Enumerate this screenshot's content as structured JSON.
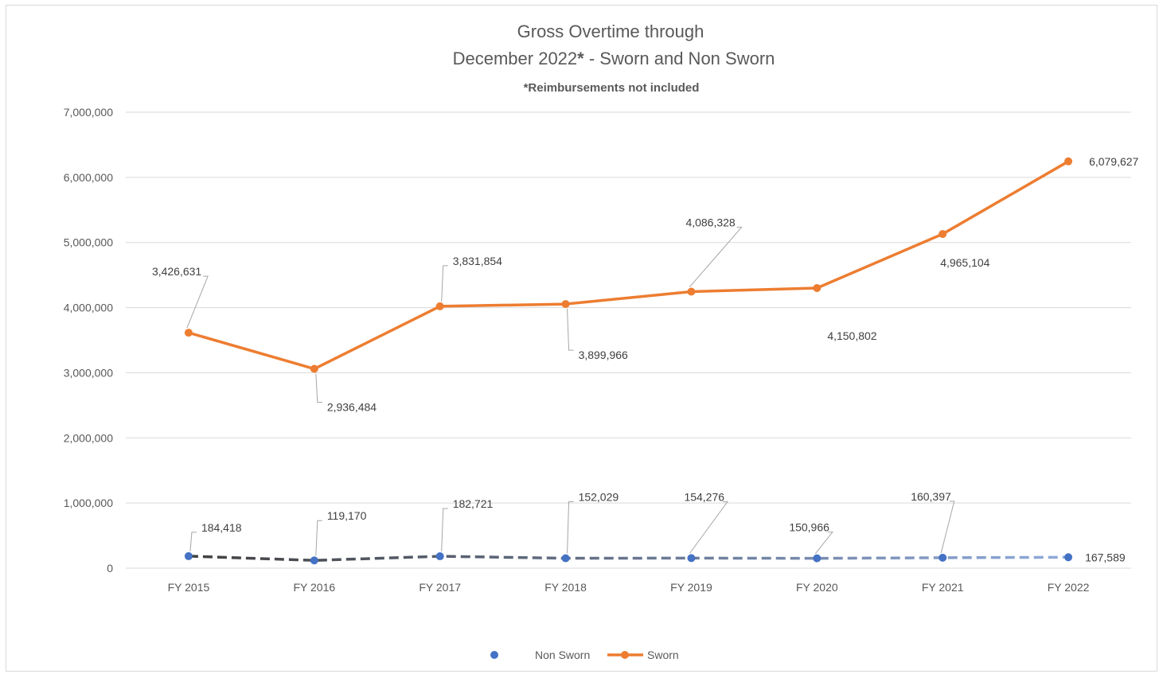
{
  "chart_data": {
    "type": "line",
    "title_line1": "Gross Overtime through",
    "title_line2_pre": "December 2022",
    "title_line2_star": "*",
    "title_line2_post": " - Sworn and Non Sworn",
    "subtitle": "*Reimbursements not included",
    "xlabel": "",
    "ylabel": "",
    "categories": [
      "FY 2015",
      "FY 2016",
      "FY 2017",
      "FY 2018",
      "FY 2019",
      "FY 2020",
      "FY 2021",
      "FY 2022"
    ],
    "ylim": [
      0,
      7000000
    ],
    "y_ticks": [
      {
        "value": 0,
        "label": "0"
      },
      {
        "value": 1000000,
        "label": "1,000,000"
      },
      {
        "value": 2000000,
        "label": "2,000,000"
      },
      {
        "value": 3000000,
        "label": "3,000,000"
      },
      {
        "value": 4000000,
        "label": "4,000,000"
      },
      {
        "value": 5000000,
        "label": "5,000,000"
      },
      {
        "value": 6000000,
        "label": "6,000,000"
      },
      {
        "value": 7000000,
        "label": "7,000,000"
      }
    ],
    "grid": true,
    "legend_position": "bottom",
    "series": [
      {
        "name": "Non Sworn",
        "color": "#4472c4",
        "line_style": "dashed",
        "line_gradient": [
          "#404040",
          "#8faadc"
        ],
        "values": [
          184418,
          119170,
          182721,
          152029,
          154276,
          150966,
          160397,
          167589
        ],
        "labels": [
          "184,418",
          "119,170",
          "182,721",
          "152,029",
          "154,276",
          "150,966",
          "160,397",
          "167,589"
        ]
      },
      {
        "name": "Sworn",
        "color": "#ed7d31",
        "line_style": "solid",
        "values": [
          3615000,
          3060000,
          4020000,
          4055000,
          4245000,
          4300000,
          5130000,
          6245000
        ],
        "labels": [
          "3,426,631",
          "2,936,484",
          "3,831,854",
          "3,899,966",
          "4,086,328",
          "4,150,802",
          "4,965,104",
          "6,079,627"
        ]
      }
    ]
  }
}
